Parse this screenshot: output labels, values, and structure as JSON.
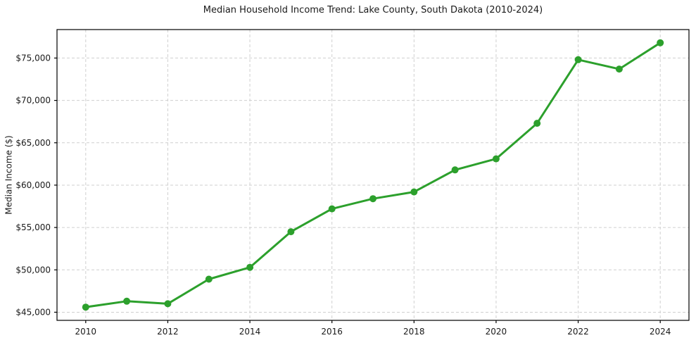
{
  "chart_data": {
    "type": "line",
    "title": "Median Household Income Trend: Lake County, South Dakota (2010-2024)",
    "xlabel": "",
    "ylabel": "Median Income ($)",
    "x": [
      2010,
      2011,
      2012,
      2013,
      2014,
      2015,
      2016,
      2017,
      2018,
      2019,
      2020,
      2021,
      2022,
      2023,
      2024
    ],
    "series": [
      {
        "name": "Median Household Income",
        "values": [
          45600,
          46300,
          46000,
          48900,
          50300,
          54500,
          57200,
          58400,
          59200,
          61800,
          63100,
          67300,
          74800,
          73700,
          76800
        ]
      }
    ],
    "x_tick_values": [
      2010,
      2012,
      2014,
      2016,
      2018,
      2020,
      2022,
      2024
    ],
    "x_tick_labels": [
      "2010",
      "2012",
      "2014",
      "2016",
      "2018",
      "2020",
      "2022",
      "2024"
    ],
    "y_tick_values": [
      45000,
      50000,
      55000,
      60000,
      65000,
      70000,
      75000
    ],
    "y_tick_labels": [
      "$45,000",
      "$50,000",
      "$55,000",
      "$60,000",
      "$65,000",
      "$70,000",
      "$75,000"
    ],
    "xlim": [
      2009.3,
      2024.7
    ],
    "ylim": [
      44040,
      78360
    ],
    "grid": "dashed-both",
    "legend": "none",
    "colors": {
      "line": "#2ca02c",
      "marker": "#2ca02c",
      "grid": "#cfcfcf",
      "spine": "#000000",
      "text": "#1a1a1a"
    }
  }
}
